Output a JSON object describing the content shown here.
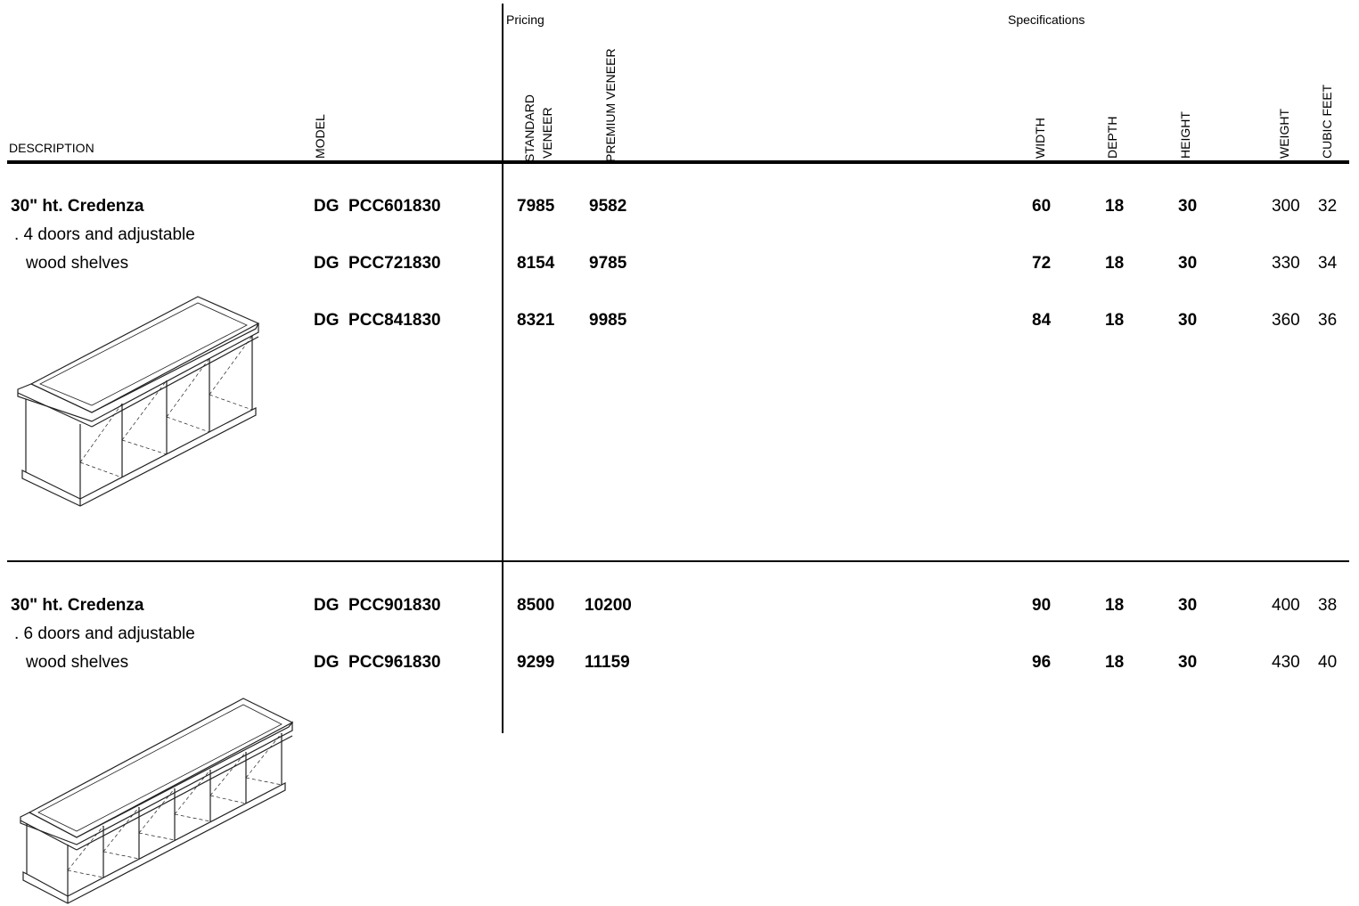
{
  "header": {
    "pricing_label": "Pricing",
    "specifications_label": "Specifications",
    "columns": {
      "description": "DESCRIPTION",
      "model": "MODEL",
      "standard_veneer_1": "STANDARD",
      "standard_veneer_2": "VENEER",
      "premium_veneer": "PREMIUM VENEER",
      "width": "WIDTH",
      "depth": "DEPTH",
      "height": "HEIGHT",
      "weight": "WEIGHT",
      "cubic_feet": "CUBIC FEET"
    }
  },
  "sections": [
    {
      "title": "30\" ht. Credenza",
      "line1": ". 4 doors and adjustable",
      "line2": "wood shelves",
      "drawing_icon": "credenza-4-door-drawing",
      "rows": [
        {
          "model": "DG  PCC601830",
          "standard": "7985",
          "premium": "9582",
          "width": "60",
          "depth": "18",
          "height": "30",
          "weight": "300",
          "cubic": "32"
        },
        {
          "model": "DG  PCC721830",
          "standard": "8154",
          "premium": "9785",
          "width": "72",
          "depth": "18",
          "height": "30",
          "weight": "330",
          "cubic": "34"
        },
        {
          "model": "DG  PCC841830",
          "standard": "8321",
          "premium": "9985",
          "width": "84",
          "depth": "18",
          "height": "30",
          "weight": "360",
          "cubic": "36"
        }
      ]
    },
    {
      "title": "30\" ht. Credenza",
      "line1": ". 6 doors and adjustable",
      "line2": "wood shelves",
      "drawing_icon": "credenza-6-door-drawing",
      "rows": [
        {
          "model": "DG  PCC901830",
          "standard": "8500",
          "premium": "10200",
          "width": "90",
          "depth": "18",
          "height": "30",
          "weight": "400",
          "cubic": "38"
        },
        {
          "model": "DG  PCC961830",
          "standard": "9299",
          "premium": "11159",
          "width": "96",
          "depth": "18",
          "height": "30",
          "weight": "430",
          "cubic": "40"
        }
      ]
    }
  ]
}
